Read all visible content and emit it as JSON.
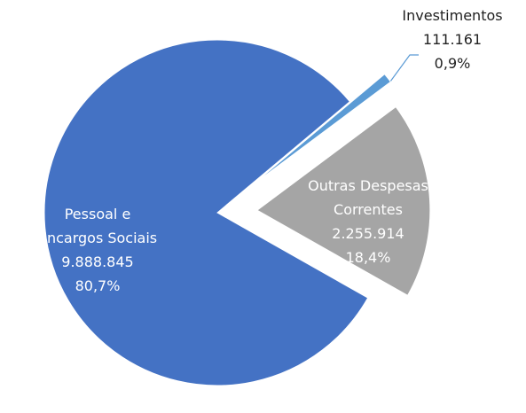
{
  "chart_data": {
    "type": "pie",
    "categories": [
      "Pessoal e Encargos Sociais",
      "Outras Despesas Correntes",
      "Investimentos"
    ],
    "values": [
      9888845,
      2255914,
      111161
    ],
    "value_labels": [
      "9.888.845",
      "2.255.914",
      "111.161"
    ],
    "percent_labels": [
      "80,7%",
      "18,4%",
      "0,9%"
    ],
    "colors": [
      "#4472c4",
      "#a5a5a5",
      "#5b9bd5"
    ]
  }
}
